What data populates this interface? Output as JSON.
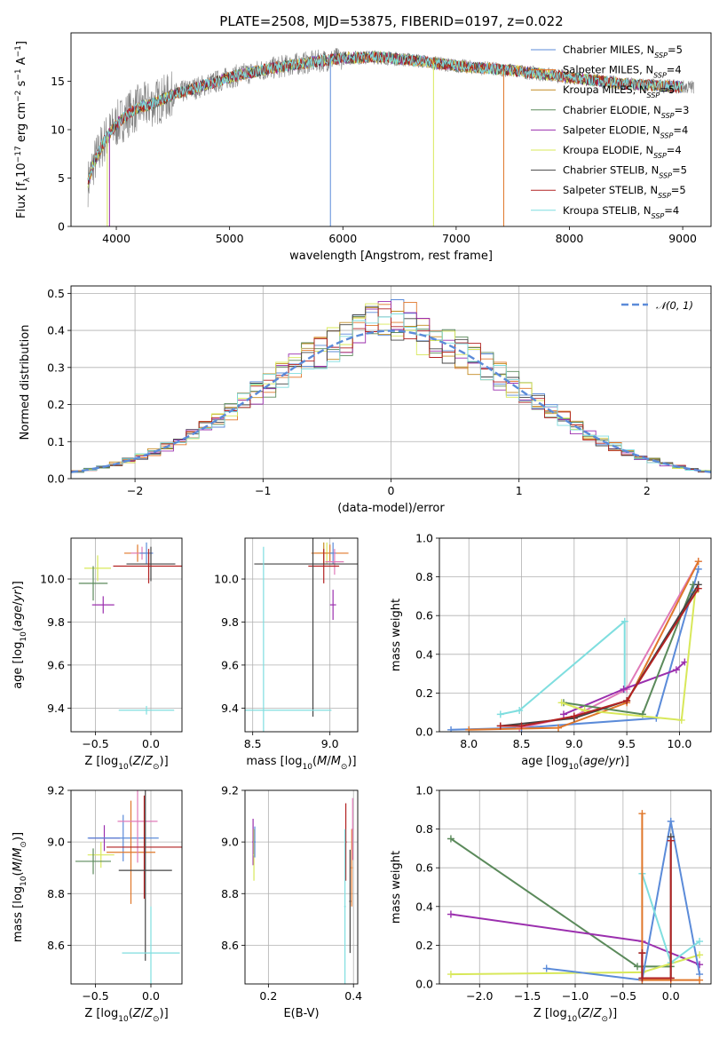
{
  "figure_title": "PLATE=2508, MJD=53875, FIBERID=0197, z=0.022",
  "colors": {
    "chabrier_miles": "#5b8bd9",
    "salpeter_miles": "#e0772a",
    "kroupa_miles": "#c48c22",
    "chabrier_elodie": "#5b8a5b",
    "salpeter_elodie": "#9b2fae",
    "kroupa_elodie": "#d8e85a",
    "chabrier_stelib": "#444444",
    "salpeter_stelib": "#b22222",
    "kroupa_stelib": "#7fdedf",
    "pink": "#e07ab8",
    "normal": "#5b8bd9"
  },
  "chart_data": [
    {
      "id": "spectrum",
      "type": "line",
      "xlabel": "wavelength [Angstrom, rest frame]",
      "ylabel": "Flux [f_λ10^-17 erg cm^-2 s^-1 A^-1]",
      "xlim": [
        3600,
        9250
      ],
      "ylim": [
        0,
        20
      ],
      "xticks": [
        "4000",
        "5000",
        "6000",
        "7000",
        "8000",
        "9000"
      ],
      "yticks": [
        "0",
        "5",
        "10",
        "15"
      ],
      "grid": false,
      "legend": "top-right",
      "continuum_x": [
        3750,
        3800,
        3900,
        4000,
        4100,
        4200,
        4300,
        4500,
        4700,
        5000,
        5300,
        5600,
        6000,
        6300,
        6600,
        7000,
        7500,
        8000,
        8500,
        9000
      ],
      "continuum_y": [
        4.5,
        6.5,
        9.0,
        10.5,
        11.6,
        12.3,
        12.6,
        13.6,
        14.3,
        15.4,
        16.2,
        16.8,
        17.4,
        17.5,
        17.2,
        16.6,
        16.1,
        15.4,
        14.7,
        14.4
      ],
      "series": [
        {
          "name": "Chabrier MILES",
          "nssp": "5",
          "color": "#5b8bd9"
        },
        {
          "name": "Salpeter MILES",
          "nssp": "4",
          "color": "#e0772a"
        },
        {
          "name": "Kroupa MILES",
          "nssp": "5",
          "color": "#c48c22"
        },
        {
          "name": "Chabrier ELODIE",
          "nssp": "3",
          "color": "#5b8a5b"
        },
        {
          "name": "Salpeter ELODIE",
          "nssp": "4",
          "color": "#9b2fae"
        },
        {
          "name": "Kroupa ELODIE",
          "nssp": "4",
          "color": "#d8e85a"
        },
        {
          "name": "Chabrier STELIB",
          "nssp": "5",
          "color": "#444444"
        },
        {
          "name": "Salpeter STELIB",
          "nssp": "5",
          "color": "#b22222"
        },
        {
          "name": "Kroupa STELIB",
          "nssp": "4",
          "color": "#7fdedf"
        }
      ]
    },
    {
      "id": "residuals",
      "type": "line",
      "xlabel": "(data-model)/error",
      "ylabel": "Normed distribution",
      "xlim": [
        -2.5,
        2.5
      ],
      "ylim": [
        0,
        0.52
      ],
      "xticks": [
        "−2",
        "−1",
        "0",
        "1",
        "2"
      ],
      "yticks": [
        "0.0",
        "0.1",
        "0.2",
        "0.3",
        "0.4",
        "0.5"
      ],
      "grid": true,
      "legend": "top-right",
      "legend_label": "N(0,1)",
      "series": [
        {
          "name": "N(0,1)",
          "kind": "gaussian",
          "mean": 0,
          "sigma": 1
        }
      ]
    },
    {
      "id": "age_vs_z",
      "type": "scatter",
      "xlabel": "Z [log10(Z/Z⊙)]",
      "ylabel": "age [log10(age/yr)]",
      "xlim": [
        -0.72,
        0.28
      ],
      "ylim": [
        9.29,
        10.19
      ],
      "xticks": [
        "−0.5",
        "0.0"
      ],
      "yticks": [
        "9.4",
        "9.6",
        "9.8",
        "10.0"
      ],
      "grid": true,
      "points": [
        {
          "x": -0.48,
          "y": 10.05,
          "xerr": 0.12,
          "yerr": 0.06,
          "color": "#d8e85a"
        },
        {
          "x": -0.52,
          "y": 9.98,
          "xerr": 0.13,
          "yerr": 0.08,
          "color": "#5b8a5b"
        },
        {
          "x": -0.43,
          "y": 9.88,
          "xerr": 0.1,
          "yerr": 0.04,
          "color": "#9b2fae"
        },
        {
          "x": -0.12,
          "y": 10.12,
          "xerr": 0.12,
          "yerr": 0.04,
          "color": "#e0772a"
        },
        {
          "x": -0.08,
          "y": 10.12,
          "xerr": 0.1,
          "yerr": 0.03,
          "color": "#e07ab8"
        },
        {
          "x": -0.04,
          "y": 10.12,
          "xerr": 0.06,
          "yerr": 0.05,
          "color": "#5b8bd9"
        },
        {
          "x": 0.0,
          "y": 10.07,
          "xerr": 0.22,
          "yerr": 0.08,
          "color": "#444444"
        },
        {
          "x": -0.02,
          "y": 10.06,
          "xerr": 0.32,
          "yerr": 0.08,
          "color": "#b22222"
        },
        {
          "x": -0.04,
          "y": 9.39,
          "xerr": 0.25,
          "yerr": 0.02,
          "color": "#7fdedf"
        }
      ]
    },
    {
      "id": "age_vs_mass",
      "type": "scatter",
      "xlabel": "mass [log10(M/M⊙)]",
      "ylabel": "",
      "xlim": [
        8.45,
        9.18
      ],
      "ylim": [
        9.29,
        10.19
      ],
      "xticks": [
        "8.5",
        "9.0"
      ],
      "yticks": [
        "9.4",
        "9.6",
        "9.8",
        "10.0"
      ],
      "grid": true,
      "points": [
        {
          "x": 8.96,
          "y": 10.12,
          "xerr": 0.06,
          "yerr": 0.05,
          "color": "#c48c22"
        },
        {
          "x": 8.98,
          "y": 10.12,
          "xerr": 0.06,
          "yerr": 0.05,
          "color": "#d8e85a"
        },
        {
          "x": 9.0,
          "y": 10.12,
          "xerr": 0.12,
          "yerr": 0.04,
          "color": "#e0772a"
        },
        {
          "x": 9.02,
          "y": 10.12,
          "xerr": 0.02,
          "yerr": 0.05,
          "color": "#5b8bd9"
        },
        {
          "x": 9.03,
          "y": 10.08,
          "xerr": 0.06,
          "yerr": 0.06,
          "color": "#e07ab8"
        },
        {
          "x": 9.02,
          "y": 9.88,
          "xerr": 0.02,
          "yerr": 0.07,
          "color": "#9b2fae"
        },
        {
          "x": 8.96,
          "y": 10.06,
          "xerr": 0.1,
          "yerr": 0.08,
          "color": "#b22222"
        },
        {
          "x": 8.89,
          "y": 10.07,
          "xerr": 0.38,
          "yerr": 0.71,
          "color": "#444444"
        },
        {
          "x": 8.57,
          "y": 9.39,
          "xerr": 0.44,
          "yerr": 0.76,
          "color": "#7fdedf"
        }
      ]
    },
    {
      "id": "weight_vs_age",
      "type": "line",
      "xlabel": "age [log10(age/yr)]",
      "ylabel": "mass weight",
      "xlim": [
        7.72,
        10.3
      ],
      "ylim": [
        0,
        1.0
      ],
      "xticks": [
        "8.0",
        "8.5",
        "9.0",
        "9.5",
        "10.0"
      ],
      "yticks": [
        "0.0",
        "0.2",
        "0.4",
        "0.6",
        "0.8",
        "1.0"
      ],
      "grid": true,
      "series": [
        {
          "color": "#7fdedf",
          "x": [
            8.3,
            8.48,
            9.48,
            9.48
          ],
          "y": [
            0.09,
            0.11,
            0.57,
            0.22
          ]
        },
        {
          "color": "#5b8bd9",
          "x": [
            7.83,
            8.5,
            9.78,
            10.18
          ],
          "y": [
            0.01,
            0.02,
            0.07,
            0.84
          ]
        },
        {
          "color": "#e07ab8",
          "x": [
            8.48,
            9.0,
            9.5,
            10.18
          ],
          "y": [
            0.02,
            0.08,
            0.22,
            0.88
          ]
        },
        {
          "color": "#e0772a",
          "x": [
            8.0,
            8.85,
            9.5,
            10.18
          ],
          "y": [
            0.01,
            0.02,
            0.15,
            0.88
          ]
        },
        {
          "color": "#9b2fae",
          "x": [
            8.9,
            9.47,
            9.97,
            10.05
          ],
          "y": [
            0.09,
            0.22,
            0.32,
            0.36
          ]
        },
        {
          "color": "#5b8a5b",
          "x": [
            8.9,
            9.65,
            10.13
          ],
          "y": [
            0.15,
            0.09,
            0.76
          ]
        },
        {
          "color": "#d8e85a",
          "x": [
            8.88,
            9.1,
            10.02,
            10.15
          ],
          "y": [
            0.15,
            0.11,
            0.06,
            0.72
          ]
        },
        {
          "color": "#444444",
          "x": [
            8.3,
            9.0,
            9.5,
            10.18
          ],
          "y": [
            0.03,
            0.07,
            0.16,
            0.76
          ]
        },
        {
          "color": "#b22222",
          "x": [
            8.3,
            8.5,
            9.0,
            9.5,
            10.18
          ],
          "y": [
            0.03,
            0.03,
            0.08,
            0.16,
            0.74
          ]
        }
      ]
    },
    {
      "id": "mass_vs_z",
      "type": "scatter",
      "xlabel": "Z [log10(Z/Z⊙)]",
      "ylabel": "mass [log10(M/M⊙)]",
      "xlim": [
        -0.72,
        0.28
      ],
      "ylim": [
        8.45,
        9.2
      ],
      "xticks": [
        "−0.5",
        "0.0"
      ],
      "yticks": [
        "8.6",
        "8.8",
        "9.0",
        "9.2"
      ],
      "grid": true,
      "points": [
        {
          "x": -0.45,
          "y": 8.95,
          "xerr": 0.12,
          "yerr": 0.05,
          "color": "#d8e85a"
        },
        {
          "x": -0.52,
          "y": 8.925,
          "xerr": 0.16,
          "yerr": 0.05,
          "color": "#5b8a5b"
        },
        {
          "x": -0.42,
          "y": 9.015,
          "xerr": 0.14,
          "yerr": 0.05,
          "color": "#9b2fae"
        },
        {
          "x": -0.25,
          "y": 9.015,
          "xerr": 0.32,
          "yerr": 0.09,
          "color": "#5b8bd9"
        },
        {
          "x": -0.18,
          "y": 8.96,
          "xerr": 0.22,
          "yerr": 0.2,
          "color": "#e0772a"
        },
        {
          "x": -0.12,
          "y": 9.08,
          "xerr": 0.18,
          "yerr": 0.16,
          "color": "#e07ab8"
        },
        {
          "x": -0.06,
          "y": 8.98,
          "xerr": 0.34,
          "yerr": 0.2,
          "color": "#b22222"
        },
        {
          "x": -0.05,
          "y": 8.89,
          "xerr": 0.24,
          "yerr": 0.35,
          "color": "#444444"
        },
        {
          "x": 0.0,
          "y": 8.57,
          "xerr": 0.26,
          "yerr": 0.18,
          "color": "#7fdedf"
        }
      ]
    },
    {
      "id": "mass_vs_ebv",
      "type": "scatter",
      "xlabel": "E(B-V)",
      "ylabel": "",
      "xlim": [
        0.145,
        0.41
      ],
      "ylim": [
        8.45,
        9.2
      ],
      "xticks": [
        "0.2",
        "0.4"
      ],
      "yticks": [
        "8.6",
        "8.8",
        "9.0",
        "9.2"
      ],
      "grid": true,
      "points": [
        {
          "x": 0.164,
          "y": 9.0,
          "xerr": 0.002,
          "yerr": 0.09,
          "color": "#9b2fae"
        },
        {
          "x": 0.166,
          "y": 8.95,
          "xerr": 0.002,
          "yerr": 0.1,
          "color": "#d8e85a"
        },
        {
          "x": 0.168,
          "y": 9.0,
          "xerr": 0.002,
          "yerr": 0.06,
          "color": "#5b8bd9"
        },
        {
          "x": 0.382,
          "y": 9.0,
          "xerr": 0.002,
          "yerr": 0.15,
          "color": "#b22222"
        },
        {
          "x": 0.38,
          "y": 8.75,
          "xerr": 0.002,
          "yerr": 0.3,
          "color": "#7fdedf"
        },
        {
          "x": 0.392,
          "y": 8.77,
          "xerr": 0.002,
          "yerr": 0.2,
          "color": "#444444"
        },
        {
          "x": 0.396,
          "y": 8.9,
          "xerr": 0.002,
          "yerr": 0.15,
          "color": "#e0772a"
        },
        {
          "x": 0.398,
          "y": 9.05,
          "xerr": 0.002,
          "yerr": 0.12,
          "color": "#e07ab8"
        }
      ]
    },
    {
      "id": "weight_vs_z",
      "type": "line",
      "xlabel": "Z [log10(Z/Z⊙)]",
      "ylabel": "mass weight",
      "xlim": [
        -2.42,
        0.42
      ],
      "ylim": [
        0,
        1.0
      ],
      "xticks": [
        "−2.0",
        "−1.5",
        "−1.0",
        "−0.5",
        "0.0"
      ],
      "yticks": [
        "0.0",
        "0.2",
        "0.4",
        "0.6",
        "0.8",
        "1.0"
      ],
      "grid": true,
      "series": [
        {
          "color": "#5b8a5b",
          "x": [
            -2.3,
            -0.35,
            0.0
          ],
          "y": [
            0.75,
            0.09,
            0.09
          ]
        },
        {
          "color": "#9b2fae",
          "x": [
            -2.3,
            -0.3,
            0.3
          ],
          "y": [
            0.36,
            0.22,
            0.1
          ]
        },
        {
          "color": "#d8e85a",
          "x": [
            -2.3,
            -0.3,
            0.3
          ],
          "y": [
            0.05,
            0.06,
            0.15
          ]
        },
        {
          "color": "#5b8bd9",
          "x": [
            -1.3,
            -0.3,
            0.0,
            0.3
          ],
          "y": [
            0.08,
            0.02,
            0.84,
            0.05
          ]
        },
        {
          "color": "#7fdedf",
          "x": [
            -0.3,
            0.0,
            0.3
          ],
          "y": [
            0.57,
            0.11,
            0.22
          ]
        },
        {
          "color": "#e0772a",
          "x": [
            -0.3,
            -0.3,
            0.0,
            0.3
          ],
          "y": [
            0.88,
            0.02,
            0.02,
            0.02
          ]
        },
        {
          "color": "#444444",
          "x": [
            -0.3,
            -0.3,
            0.0,
            0.0
          ],
          "y": [
            0.16,
            0.03,
            0.03,
            0.76
          ]
        },
        {
          "color": "#b22222",
          "x": [
            -0.3,
            -0.3,
            0.0,
            0.0
          ],
          "y": [
            0.16,
            0.03,
            0.03,
            0.74
          ]
        }
      ]
    }
  ]
}
